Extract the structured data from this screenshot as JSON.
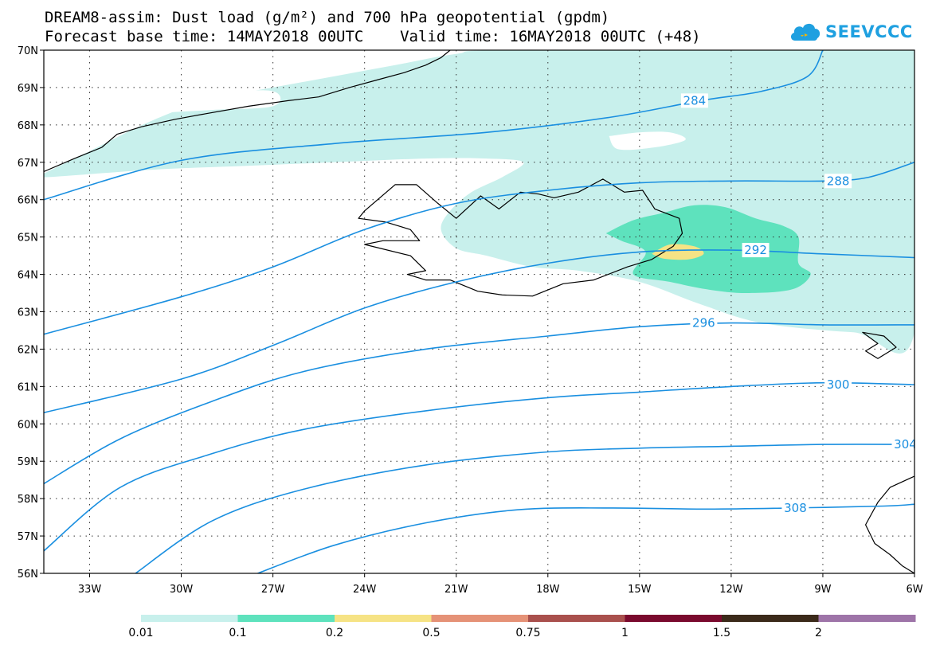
{
  "header": {
    "line1": "DREAM8-assim: Dust load (g/m²) and 700 hPa geopotential (gpdm)",
    "line2": "Forecast base time: 14MAY2018 00UTC    Valid time: 16MAY2018 00UTC (+48)"
  },
  "logo": {
    "text": "SEEVCCC",
    "color": "#1fa0e0"
  },
  "map": {
    "lon_range": [
      -34.5,
      -6
    ],
    "lat_range": [
      56,
      70
    ],
    "lon_ticks": [
      {
        "lon": -33,
        "label": "33W"
      },
      {
        "lon": -30,
        "label": "30W"
      },
      {
        "lon": -27,
        "label": "27W"
      },
      {
        "lon": -24,
        "label": "24W"
      },
      {
        "lon": -21,
        "label": "21W"
      },
      {
        "lon": -18,
        "label": "18W"
      },
      {
        "lon": -15,
        "label": "15W"
      },
      {
        "lon": -12,
        "label": "12W"
      },
      {
        "lon": -9,
        "label": "9W"
      },
      {
        "lon": -6,
        "label": "6W"
      }
    ],
    "lat_ticks": [
      {
        "lat": 70,
        "label": "70N"
      },
      {
        "lat": 69,
        "label": "69N"
      },
      {
        "lat": 68,
        "label": "68N"
      },
      {
        "lat": 67,
        "label": "67N"
      },
      {
        "lat": 66,
        "label": "66N"
      },
      {
        "lat": 65,
        "label": "65N"
      },
      {
        "lat": 64,
        "label": "64N"
      },
      {
        "lat": 63,
        "label": "63N"
      },
      {
        "lat": 62,
        "label": "62N"
      },
      {
        "lat": 61,
        "label": "61N"
      },
      {
        "lat": 60,
        "label": "60N"
      },
      {
        "lat": 59,
        "label": "59N"
      },
      {
        "lat": 58,
        "label": "58N"
      },
      {
        "lat": 57,
        "label": "57N"
      },
      {
        "lat": 56,
        "label": "56N"
      }
    ],
    "contour_color": "#1a8fe0",
    "contours": [
      {
        "value": 284,
        "label": "284",
        "label_at": [
          -13.2,
          68.65
        ],
        "points": [
          [
            -34.5,
            66.0
          ],
          [
            -30,
            67.05
          ],
          [
            -25,
            67.5
          ],
          [
            -20,
            67.8
          ],
          [
            -16,
            68.2
          ],
          [
            -13,
            68.65
          ],
          [
            -11,
            68.9
          ],
          [
            -9.5,
            69.3
          ],
          [
            -9.0,
            70.0
          ]
        ]
      },
      {
        "value": 288,
        "label": "288",
        "label_at": [
          -8.5,
          66.5
        ],
        "points": [
          [
            -34.5,
            62.4
          ],
          [
            -30,
            63.4
          ],
          [
            -27,
            64.2
          ],
          [
            -24,
            65.2
          ],
          [
            -21,
            65.9
          ],
          [
            -18,
            66.25
          ],
          [
            -15,
            66.45
          ],
          [
            -12,
            66.5
          ],
          [
            -9,
            66.5
          ],
          [
            -7.5,
            66.6
          ],
          [
            -6,
            67.0
          ]
        ]
      },
      {
        "value": 292,
        "label": "292",
        "label_at": [
          -11.2,
          64.65
        ],
        "points": [
          [
            -34.5,
            60.3
          ],
          [
            -30,
            61.2
          ],
          [
            -27,
            62.1
          ],
          [
            -24,
            63.1
          ],
          [
            -21,
            63.8
          ],
          [
            -18,
            64.3
          ],
          [
            -15,
            64.6
          ],
          [
            -12,
            64.65
          ],
          [
            -9,
            64.55
          ],
          [
            -6,
            64.45
          ]
        ]
      },
      {
        "value": 296,
        "label": "296",
        "label_at": [
          -12.9,
          62.7
        ],
        "points": [
          [
            -34.5,
            58.4
          ],
          [
            -32,
            59.6
          ],
          [
            -29,
            60.6
          ],
          [
            -26,
            61.4
          ],
          [
            -22,
            62.0
          ],
          [
            -18,
            62.35
          ],
          [
            -15,
            62.6
          ],
          [
            -12,
            62.7
          ],
          [
            -9,
            62.65
          ],
          [
            -6,
            62.65
          ]
        ]
      },
      {
        "value": 300,
        "label": "300",
        "label_at": [
          -8.5,
          61.05
        ],
        "points": [
          [
            -34.5,
            56.6
          ],
          [
            -32,
            58.3
          ],
          [
            -29,
            59.2
          ],
          [
            -26,
            59.85
          ],
          [
            -22,
            60.35
          ],
          [
            -18,
            60.7
          ],
          [
            -15,
            60.85
          ],
          [
            -12,
            61.0
          ],
          [
            -9,
            61.1
          ],
          [
            -6,
            61.05
          ]
        ]
      },
      {
        "value": 304,
        "label": "304",
        "label_at": [
          -6.3,
          59.45
        ],
        "points": [
          [
            -31.5,
            56.0
          ],
          [
            -29,
            57.4
          ],
          [
            -26,
            58.25
          ],
          [
            -22,
            58.9
          ],
          [
            -18,
            59.25
          ],
          [
            -15,
            59.35
          ],
          [
            -12,
            59.4
          ],
          [
            -9,
            59.45
          ],
          [
            -6,
            59.45
          ]
        ]
      },
      {
        "value": 308,
        "label": "308",
        "label_at": [
          -9.9,
          57.75
        ],
        "points": [
          [
            -27.5,
            56.0
          ],
          [
            -25,
            56.75
          ],
          [
            -22,
            57.35
          ],
          [
            -19,
            57.7
          ],
          [
            -16,
            57.75
          ],
          [
            -13,
            57.72
          ],
          [
            -10,
            57.75
          ],
          [
            -7,
            57.8
          ],
          [
            -6,
            57.85
          ]
        ]
      }
    ],
    "dust_layers": [
      {
        "level": 0.01,
        "color": "#c8f0ec",
        "points": [
          [
            -34.5,
            66.7
          ],
          [
            -33,
            67.3
          ],
          [
            -31,
            68.1
          ],
          [
            -29,
            68.7
          ],
          [
            -27,
            69.0
          ],
          [
            -25,
            69.3
          ],
          [
            -23,
            69.6
          ],
          [
            -21,
            69.9
          ],
          [
            -19,
            70.0
          ],
          [
            -6,
            70.0
          ],
          [
            -6,
            62.45
          ],
          [
            -8,
            62.45
          ],
          [
            -11,
            62.7
          ],
          [
            -13,
            63.2
          ],
          [
            -15,
            63.8
          ],
          [
            -17,
            64.1
          ],
          [
            -18.5,
            64.2
          ],
          [
            -20,
            64.5
          ],
          [
            -21,
            64.7
          ],
          [
            -21.5,
            65.2
          ],
          [
            -21.2,
            65.7
          ],
          [
            -20.5,
            66.2
          ],
          [
            -19.5,
            66.6
          ],
          [
            -18.8,
            67.0
          ],
          [
            -20,
            67.1
          ],
          [
            -22,
            67.1
          ],
          [
            -25,
            67.0
          ],
          [
            -28,
            66.9
          ],
          [
            -31,
            66.8
          ],
          [
            -34.5,
            66.6
          ]
        ]
      },
      {
        "level": 0.1,
        "color": "#5ee2bd",
        "points": [
          [
            -16.1,
            65.1
          ],
          [
            -15.2,
            65.45
          ],
          [
            -14.2,
            65.65
          ],
          [
            -13.2,
            65.85
          ],
          [
            -12.2,
            65.8
          ],
          [
            -11.2,
            65.5
          ],
          [
            -10.3,
            65.3
          ],
          [
            -9.8,
            65.0
          ],
          [
            -9.8,
            64.3
          ],
          [
            -9.4,
            64.0
          ],
          [
            -10.0,
            63.6
          ],
          [
            -11.5,
            63.5
          ],
          [
            -12.8,
            63.6
          ],
          [
            -14.0,
            63.8
          ],
          [
            -15.2,
            64.0
          ],
          [
            -14.8,
            64.6
          ],
          [
            -15.6,
            64.9
          ]
        ]
      },
      {
        "level": 0.2,
        "color": "#f6e385",
        "points": [
          [
            -14.6,
            64.55
          ],
          [
            -14.0,
            64.8
          ],
          [
            -13.2,
            64.75
          ],
          [
            -12.9,
            64.55
          ],
          [
            -13.4,
            64.4
          ],
          [
            -14.2,
            64.42
          ]
        ]
      }
    ],
    "holes": [
      {
        "points": [
          [
            -16,
            67.7
          ],
          [
            -15,
            67.8
          ],
          [
            -14,
            67.8
          ],
          [
            -13.5,
            67.6
          ],
          [
            -14.5,
            67.4
          ],
          [
            -15.7,
            67.35
          ]
        ]
      },
      {
        "points": [
          [
            -34.5,
            69.0
          ],
          [
            -31,
            69.0
          ],
          [
            -29,
            68.9
          ],
          [
            -27,
            68.9
          ],
          [
            -27,
            68.5
          ],
          [
            -29,
            68.4
          ],
          [
            -31,
            68.3
          ],
          [
            -33,
            68.1
          ],
          [
            -34.5,
            67.9
          ]
        ]
      }
    ],
    "coastlines": {
      "iceland": [
        [
          -22.0,
          63.85
        ],
        [
          -21.2,
          63.85
        ],
        [
          -20.3,
          63.55
        ],
        [
          -19.5,
          63.45
        ],
        [
          -18.5,
          63.42
        ],
        [
          -17.5,
          63.75
        ],
        [
          -16.5,
          63.85
        ],
        [
          -15.4,
          64.2
        ],
        [
          -14.6,
          64.4
        ],
        [
          -13.9,
          64.75
        ],
        [
          -13.6,
          65.1
        ],
        [
          -13.7,
          65.5
        ],
        [
          -14.5,
          65.75
        ],
        [
          -14.9,
          66.25
        ],
        [
          -15.5,
          66.2
        ],
        [
          -16.2,
          66.55
        ],
        [
          -17.0,
          66.2
        ],
        [
          -17.8,
          66.05
        ],
        [
          -18.3,
          66.15
        ],
        [
          -18.9,
          66.2
        ],
        [
          -19.6,
          65.75
        ],
        [
          -20.2,
          66.1
        ],
        [
          -21.0,
          65.5
        ],
        [
          -21.6,
          65.9
        ],
        [
          -22.3,
          66.4
        ],
        [
          -23.0,
          66.4
        ],
        [
          -24.0,
          65.7
        ],
        [
          -24.2,
          65.5
        ],
        [
          -23.3,
          65.4
        ],
        [
          -22.5,
          65.2
        ],
        [
          -22.2,
          64.9
        ],
        [
          -23.4,
          64.9
        ],
        [
          -24.0,
          64.8
        ],
        [
          -22.5,
          64.5
        ],
        [
          -22.0,
          64.1
        ],
        [
          -22.6,
          64.0
        ],
        [
          -22.0,
          63.85
        ]
      ],
      "greenland": [
        [
          -34.5,
          66.75
        ],
        [
          -33.5,
          67.1
        ],
        [
          -32.6,
          67.4
        ],
        [
          -32.1,
          67.75
        ],
        [
          -31.3,
          67.95
        ],
        [
          -30.2,
          68.15
        ],
        [
          -29.2,
          68.3
        ],
        [
          -27.8,
          68.5
        ],
        [
          -26.5,
          68.65
        ],
        [
          -25.5,
          68.75
        ],
        [
          -24.5,
          69.0
        ],
        [
          -23.6,
          69.2
        ],
        [
          -22.7,
          69.4
        ],
        [
          -22.0,
          69.6
        ],
        [
          -21.5,
          69.8
        ],
        [
          -21.2,
          70.0
        ]
      ],
      "faroes": [
        [
          -7.7,
          62.45
        ],
        [
          -7.0,
          62.35
        ],
        [
          -6.6,
          62.05
        ],
        [
          -7.2,
          61.75
        ],
        [
          -7.6,
          61.95
        ],
        [
          -7.2,
          62.15
        ]
      ],
      "scotland": [
        [
          -6.0,
          58.6
        ],
        [
          -6.8,
          58.3
        ],
        [
          -7.2,
          57.9
        ],
        [
          -7.6,
          57.3
        ],
        [
          -7.3,
          56.8
        ],
        [
          -6.8,
          56.5
        ],
        [
          -6.4,
          56.2
        ],
        [
          -6.0,
          56.0
        ]
      ]
    }
  },
  "colorbar": {
    "colors": [
      "#c8f0ec",
      "#5ee2bd",
      "#f6e385",
      "#e59277",
      "#a9504d",
      "#7a0a2e",
      "#3b2a1a",
      "#9e74a8"
    ],
    "labels": [
      "0.01",
      "0.1",
      "0.2",
      "0.5",
      "0.75",
      "1",
      "1.5",
      "2"
    ]
  }
}
